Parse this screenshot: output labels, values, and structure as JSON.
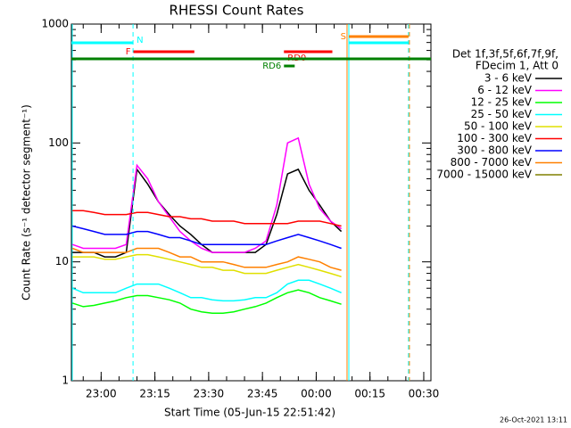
{
  "chart_data": {
    "type": "line",
    "title": "RHESSI Count Rates",
    "xlabel": "Start Time (05-Jun-15 22:51:42)",
    "ylabel": "Count Rate (s⁻¹ detector segment⁻¹)",
    "legend_header": [
      "Det 1f,3f,5f,6f,7f,9f,",
      "FDecim 1, Att 0"
    ],
    "footer": "26-Oct-2021 13:11",
    "log_y": true,
    "xlim": [
      "22:51:42",
      "00:32:00"
    ],
    "xticks": [
      "23:00",
      "23:15",
      "23:30",
      "23:45",
      "00:00",
      "00:15",
      "00:30"
    ],
    "ylim": [
      1,
      1000
    ],
    "yticks": [
      1,
      10,
      100,
      1000
    ],
    "x": [
      "22:52",
      "22:55",
      "22:58",
      "23:01",
      "23:04",
      "23:07",
      "23:10",
      "23:13",
      "23:16",
      "23:19",
      "23:22",
      "23:25",
      "23:28",
      "23:31",
      "23:34",
      "23:37",
      "23:40",
      "23:43",
      "23:46",
      "23:49",
      "23:52",
      "23:55",
      "23:58",
      "00:01",
      "00:04",
      "00:07"
    ],
    "series": [
      {
        "name": "3 - 6 keV",
        "color": "#000000",
        "values": [
          12,
          12,
          12,
          11,
          11,
          12,
          60,
          45,
          32,
          25,
          20,
          17,
          14,
          12,
          12,
          12,
          12,
          12,
          14,
          25,
          55,
          60,
          40,
          30,
          22,
          18
        ]
      },
      {
        "name": "6 - 12 keV",
        "color": "#ff00ff",
        "values": [
          14,
          13,
          13,
          13,
          13,
          14,
          65,
          50,
          32,
          24,
          18,
          15,
          13,
          12,
          12,
          12,
          12,
          13,
          15,
          30,
          100,
          110,
          45,
          28,
          22,
          19
        ]
      },
      {
        "name": "12 - 25 keV",
        "color": "#00ff00",
        "values": [
          4.5,
          4.2,
          4.3,
          4.5,
          4.7,
          5,
          5.2,
          5.2,
          5,
          4.8,
          4.5,
          4,
          3.8,
          3.7,
          3.7,
          3.8,
          4,
          4.2,
          4.5,
          5,
          5.5,
          5.8,
          5.5,
          5,
          4.7,
          4.4
        ]
      },
      {
        "name": "25 - 50 keV",
        "color": "#00ffff",
        "values": [
          6,
          5.5,
          5.5,
          5.5,
          5.5,
          6,
          6.5,
          6.5,
          6.5,
          6,
          5.5,
          5,
          5,
          4.8,
          4.7,
          4.7,
          4.8,
          5,
          5,
          5.5,
          6.5,
          7,
          7,
          6.5,
          6,
          5.5
        ]
      },
      {
        "name": "50 - 100 keV",
        "color": "#e0e000",
        "values": [
          11,
          11,
          11,
          10.5,
          10.5,
          11,
          11.5,
          11.5,
          11,
          10.5,
          10,
          9.5,
          9,
          9,
          8.5,
          8.5,
          8,
          8,
          8,
          8.5,
          9,
          9.5,
          9,
          8.5,
          8,
          7.5
        ]
      },
      {
        "name": "100 - 300 keV",
        "color": "#ff0000",
        "values": [
          27,
          27,
          26,
          25,
          25,
          25,
          26,
          26,
          25,
          24,
          24,
          23,
          23,
          22,
          22,
          22,
          21,
          21,
          21,
          21,
          21,
          22,
          22,
          22,
          21,
          20
        ]
      },
      {
        "name": "300 - 800 keV",
        "color": "#0000ff",
        "values": [
          20,
          19,
          18,
          17,
          17,
          17,
          18,
          18,
          17,
          16,
          16,
          15,
          14,
          14,
          14,
          14,
          14,
          14,
          14,
          15,
          16,
          17,
          16,
          15,
          14,
          13
        ]
      },
      {
        "name": "800 - 7000 keV",
        "color": "#ff8000",
        "values": [
          13,
          12,
          12,
          12,
          12,
          12,
          13,
          13,
          13,
          12,
          11,
          11,
          10,
          10,
          10,
          9.5,
          9,
          9,
          9,
          9.5,
          10,
          11,
          10.5,
          10,
          9,
          8.5
        ]
      },
      {
        "name": "7000 - 15000 keV",
        "color": "#808000",
        "values": [
          null,
          null,
          null,
          null,
          null,
          null,
          null,
          null,
          null,
          null,
          null,
          null,
          null,
          null,
          null,
          null,
          null,
          null,
          null,
          null,
          null,
          null,
          null,
          null,
          null,
          null
        ]
      }
    ],
    "flags": [
      {
        "label": "N",
        "color": "#00ffff",
        "intervals": [
          [
            "22:51:42",
            "23:08:54"
          ],
          [
            "00:09:06",
            "00:25:45"
          ]
        ]
      },
      {
        "label": "F",
        "color": "#ff0000",
        "intervals": [
          [
            "23:09:00",
            "23:26:00"
          ]
        ]
      },
      {
        "label": "S",
        "color": "#ff8000",
        "intervals": [
          [
            "00:09:06",
            "00:25:45"
          ]
        ]
      },
      {
        "label": "RD0",
        "color": "#ff0000",
        "intervals": [
          [
            "23:51:00",
            "00:04:30"
          ]
        ]
      },
      {
        "label": "RD6",
        "color": "#008000",
        "intervals": [
          [
            "23:51:00",
            "23:54:00"
          ]
        ]
      },
      {
        "color": "#008000",
        "intervals": [
          [
            "22:51:42",
            "00:32:00"
          ]
        ]
      }
    ],
    "vlines": [
      {
        "x": "23:08:54",
        "color": "#00ffff",
        "dashed": true
      },
      {
        "x": "00:08:36",
        "color": "#ff8000",
        "dashed": false
      },
      {
        "x": "00:09:06",
        "color": "#00ffff",
        "dashed": false
      },
      {
        "x": "00:25:45",
        "color": "#00ffff",
        "dashed": true
      },
      {
        "x": "00:26:00",
        "color": "#ff8000",
        "dashed": true
      }
    ]
  }
}
